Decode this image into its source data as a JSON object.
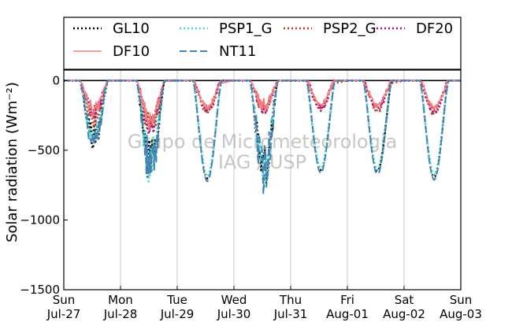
{
  "chart_data": {
    "type": "line",
    "ylabel": "Solar radiation (Wm⁻²)",
    "ylim": [
      -1500,
      75
    ],
    "yticks": [
      0,
      -500,
      -1000,
      -1500
    ],
    "ytick_labels": [
      "0",
      "−500",
      "−1000",
      "−1500"
    ],
    "xlim": [
      0,
      7
    ],
    "x_unit": "day",
    "x_ticks": [
      {
        "day": "Sun",
        "date": "Jul-27"
      },
      {
        "day": "Mon",
        "date": "Jul-28"
      },
      {
        "day": "Tue",
        "date": "Jul-29"
      },
      {
        "day": "Wed",
        "date": "Jul-30"
      },
      {
        "day": "Thu",
        "date": "Jul-31"
      },
      {
        "day": "Fri",
        "date": "Aug-01"
      },
      {
        "day": "Sat",
        "date": "Aug-02"
      },
      {
        "day": "Sun",
        "date": "Aug-03"
      }
    ],
    "grid": "vertical",
    "legend_position": "top",
    "watermark": [
      "Grupo de Micrometeorologia",
      "IAG / USP"
    ],
    "series": [
      {
        "name": "GL10",
        "color": "#000000",
        "style": "dotted"
      },
      {
        "name": "PSP1_G",
        "color": "#40e0d0",
        "style": "dotted"
      },
      {
        "name": "PSP2_G",
        "color": "#c0392b",
        "style": "dotted"
      },
      {
        "name": "DF20",
        "color": "#b0107a",
        "style": "dotted"
      },
      {
        "name": "DF10",
        "color": "#f08080",
        "style": "solid"
      },
      {
        "name": "NT11",
        "color": "#4682b4",
        "style": "dashed"
      }
    ],
    "daily_peaks": [
      {
        "day": "Jul-27",
        "global": -540,
        "diffuse": -330
      },
      {
        "day": "Jul-28",
        "global": -800,
        "diffuse": -430
      },
      {
        "day": "Jul-29",
        "global": -720,
        "diffuse": -220
      },
      {
        "day": "Jul-30",
        "global": -830,
        "diffuse": -270
      },
      {
        "day": "Jul-31",
        "global": -660,
        "diffuse": -200
      },
      {
        "day": "Aug-01",
        "global": -670,
        "diffuse": -210
      },
      {
        "day": "Aug-02",
        "global": -710,
        "diffuse": -230
      }
    ]
  }
}
